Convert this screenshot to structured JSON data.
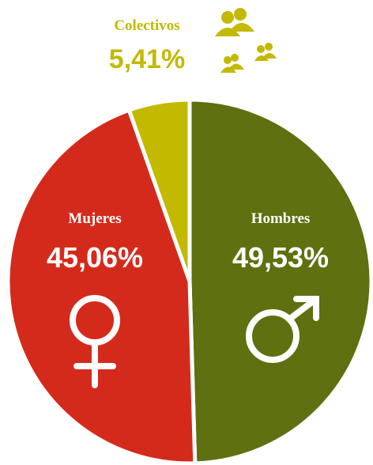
{
  "chart_data": {
    "type": "pie",
    "categories": [
      "Hombres",
      "Mujeres",
      "Colectivos"
    ],
    "values": [
      49.53,
      45.06,
      5.41
    ],
    "value_labels": [
      "49,53%",
      "45,06%",
      "5,41%"
    ],
    "colors": [
      "#5e700f",
      "#d42a1c",
      "#c3b900"
    ]
  }
}
